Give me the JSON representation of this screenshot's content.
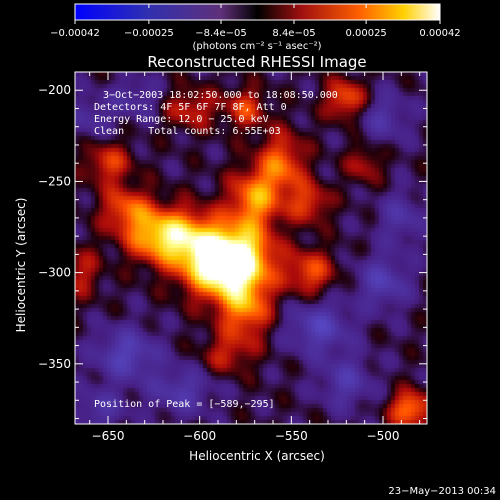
{
  "colorbar": {
    "tick_labels": [
      "−0.00042",
      "−0.00025",
      "−8.4e−05",
      "8.4e−05",
      "0.00025",
      "0.00042"
    ],
    "tick_values": [
      -0.00042,
      -0.00025,
      -8.4e-05,
      8.4e-05,
      0.00025,
      0.00042
    ],
    "range": [
      -0.00042,
      0.00042
    ],
    "unit_label": "(photons cm⁻² s⁻¹ asec⁻²)"
  },
  "chart_data": {
    "type": "heatmap",
    "title": "Reconstructed RHESSI Image",
    "xlabel": "Heliocentric X (arcsec)",
    "ylabel": "Heliocentric Y (arcsec)",
    "xlim": [
      -668,
      -476
    ],
    "ylim": [
      -383,
      -190
    ],
    "x_ticks": [
      -650,
      -600,
      -550,
      -500
    ],
    "y_ticks": [
      -200,
      -250,
      -300,
      -350
    ],
    "x_tick_labels": [
      "−650",
      "−600",
      "−550",
      "−500"
    ],
    "y_tick_labels": [
      "−200",
      "−250",
      "−300",
      "−350"
    ],
    "peak": [
      -589,
      -295
    ],
    "annotations": [
      "3−Oct−2003 18:02:50.000 to 18:08:50.000",
      "Detectors: 4F 5F 6F 7F 8F, Att 0",
      "Energy Range: 12.0 − 25.0 keV",
      "Clean    Total counts: 6.55E+03"
    ],
    "peak_label": "Position of Peak = [−589,−295]",
    "sources": [
      {
        "x": -590,
        "y": -295,
        "amp": 1.0,
        "sx": 14,
        "sy": 13
      },
      {
        "x": -575,
        "y": -292,
        "amp": 0.55,
        "sx": 12,
        "sy": 12
      },
      {
        "x": -610,
        "y": -280,
        "amp": 0.55,
        "sx": 14,
        "sy": 11
      },
      {
        "x": -625,
        "y": -280,
        "amp": 0.45,
        "sx": 12,
        "sy": 10
      },
      {
        "x": -570,
        "y": -260,
        "amp": 0.6,
        "sx": 10,
        "sy": 12
      },
      {
        "x": -555,
        "y": -240,
        "amp": 0.5,
        "sx": 9,
        "sy": 12
      },
      {
        "x": -575,
        "y": -320,
        "amp": 0.55,
        "sx": 10,
        "sy": 12
      },
      {
        "x": -540,
        "y": -300,
        "amp": 0.45,
        "sx": 10,
        "sy": 9
      },
      {
        "x": -640,
        "y": -265,
        "amp": 0.45,
        "sx": 10,
        "sy": 9
      },
      {
        "x": -650,
        "y": -240,
        "amp": 0.4,
        "sx": 9,
        "sy": 8
      },
      {
        "x": -605,
        "y": -210,
        "amp": 0.35,
        "sx": 10,
        "sy": 8
      },
      {
        "x": -575,
        "y": -210,
        "amp": 0.4,
        "sx": 8,
        "sy": 8
      },
      {
        "x": -520,
        "y": -205,
        "amp": 0.5,
        "sx": 8,
        "sy": 8
      },
      {
        "x": -540,
        "y": -262,
        "amp": 0.4,
        "sx": 8,
        "sy": 8
      },
      {
        "x": -585,
        "y": -345,
        "amp": 0.3,
        "sx": 10,
        "sy": 8
      },
      {
        "x": -485,
        "y": -375,
        "amp": 0.6,
        "sx": 8,
        "sy": 7
      },
      {
        "x": -665,
        "y": -300,
        "amp": 0.3,
        "sx": 8,
        "sy": 10
      },
      {
        "x": -510,
        "y": -240,
        "amp": 0.3,
        "sx": 7,
        "sy": 8
      },
      {
        "x": -640,
        "y": -345,
        "amp": -0.45,
        "sx": 12,
        "sy": 10
      },
      {
        "x": -535,
        "y": -330,
        "amp": -0.45,
        "sx": 12,
        "sy": 10
      },
      {
        "x": -500,
        "y": -305,
        "amp": -0.4,
        "sx": 10,
        "sy": 10
      },
      {
        "x": -520,
        "y": -360,
        "amp": -0.35,
        "sx": 10,
        "sy": 10
      },
      {
        "x": -610,
        "y": -365,
        "amp": -0.35,
        "sx": 12,
        "sy": 9
      },
      {
        "x": -655,
        "y": -375,
        "amp": -0.3,
        "sx": 10,
        "sy": 8
      },
      {
        "x": -500,
        "y": -215,
        "amp": -0.3,
        "sx": 10,
        "sy": 10
      },
      {
        "x": -635,
        "y": -205,
        "amp": -0.25,
        "sx": 10,
        "sy": 8
      },
      {
        "x": -660,
        "y": -215,
        "amp": -0.25,
        "sx": 8,
        "sy": 8
      },
      {
        "x": -490,
        "y": -270,
        "amp": -0.3,
        "sx": 9,
        "sy": 10
      }
    ]
  },
  "footer": {
    "timestamp": "23−May−2013 00:34"
  }
}
